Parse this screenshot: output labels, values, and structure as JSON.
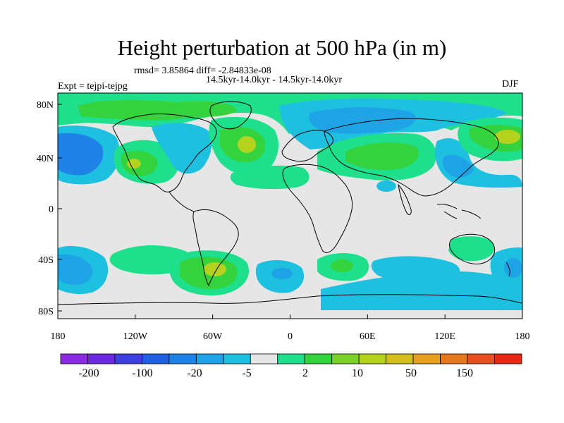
{
  "title": "Height perturbation at 500 hPa (in m)",
  "stats": "rmsd= 3.85864 diff= -2.84833e-08",
  "time_range": "14.5kyr-14.0kyr - 14.5kyr-14.0kyr",
  "experiment": "Expt = tejpi-tejpg",
  "season": "DJF",
  "lat_labels": [
    "80N",
    "40N",
    "0",
    "40S",
    "80S"
  ],
  "lon_labels": [
    "180",
    "120W",
    "60W",
    "0",
    "60E",
    "120E",
    "180"
  ],
  "colorbar": {
    "labels": [
      "-200",
      "-100",
      "-20",
      "-5",
      "2",
      "10",
      "50",
      "150"
    ],
    "colors": [
      "#8a2be2",
      "#6a2ae0",
      "#3f3fe0",
      "#1f5fe0",
      "#1f82e6",
      "#1ea4e6",
      "#1ec0e0",
      "#e6e6e6",
      "#1ee08c",
      "#34d23c",
      "#7ad228",
      "#b4d21e",
      "#d2be1e",
      "#e6a01e",
      "#e6781e",
      "#e6501e",
      "#e62814"
    ]
  },
  "colors": {
    "land_outline": "#000000",
    "neutral": "#e6e6e6",
    "light_blue": "#1ec0e0",
    "mid_blue": "#1ea4e6",
    "blue": "#1f82e6",
    "teal": "#1ee08c",
    "green": "#34d23c",
    "lime": "#b4d21e"
  }
}
